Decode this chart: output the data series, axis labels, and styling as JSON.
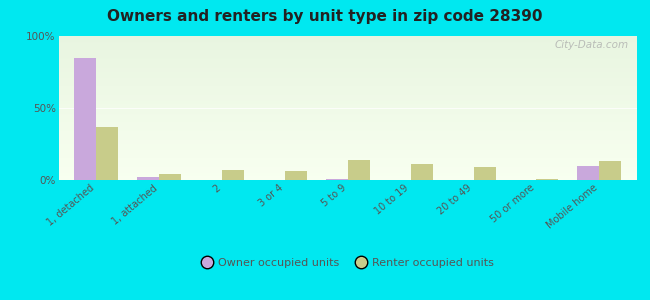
{
  "title": "Owners and renters by unit type in zip code 28390",
  "categories": [
    "1, detached",
    "1, attached",
    "2",
    "3 or 4",
    "5 to 9",
    "10 to 19",
    "20 to 49",
    "50 or more",
    "Mobile home"
  ],
  "owner_values": [
    85,
    2,
    0,
    0,
    1,
    0,
    0,
    0,
    10
  ],
  "renter_values": [
    37,
    4,
    7,
    6,
    14,
    11,
    9,
    1,
    13
  ],
  "owner_color": "#c9a8dc",
  "renter_color": "#c8cc8a",
  "outer_bg": "#00e8f0",
  "ylim": [
    0,
    100
  ],
  "yticks": [
    0,
    50,
    100
  ],
  "ytick_labels": [
    "0%",
    "50%",
    "100%"
  ],
  "bar_width": 0.35,
  "legend_owner": "Owner occupied units",
  "legend_renter": "Renter occupied units",
  "watermark": "City-Data.com"
}
